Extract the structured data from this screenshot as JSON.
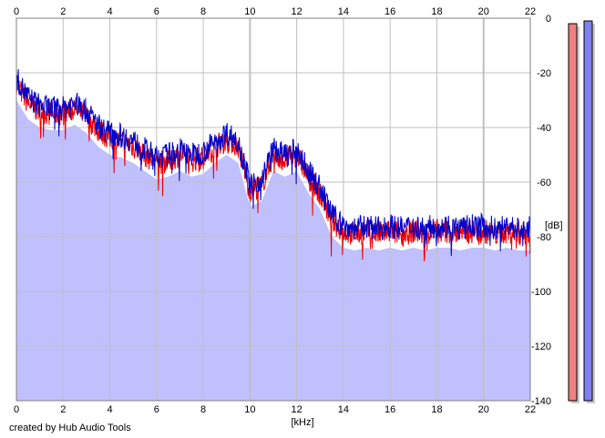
{
  "footer": {
    "credit": "created by Hub Audio Tools"
  },
  "colors": {
    "background": "#ffffff",
    "fill": "#c0c0ff",
    "grid": "#c0c0c0",
    "left_channel": "#ee0000",
    "right_channel": "#0000cc",
    "meter_left": "#f08080",
    "meter_right": "#8080f0"
  },
  "chart_data": {
    "type": "line",
    "title": "",
    "xlabel": "[kHz]",
    "ylabel": "[dB]",
    "xlim": [
      0,
      22
    ],
    "ylim": [
      -140,
      0
    ],
    "xticks": [
      "0",
      "2",
      "4",
      "6",
      "8",
      "10",
      "12",
      "14",
      "16",
      "18",
      "20",
      "22"
    ],
    "yticks": [
      "0",
      "-20",
      "-40",
      "-60",
      "-80",
      "-100",
      "-120",
      "-140"
    ],
    "grid": true,
    "x_axis_labels": "top and bottom",
    "y_axis_labels": "right",
    "series": [
      {
        "color": "#ee0000",
        "x": [
          0,
          0.5,
          1,
          1.5,
          2,
          2.5,
          3,
          3.5,
          4,
          4.5,
          5,
          5.5,
          6,
          6.5,
          7,
          7.5,
          8,
          8.5,
          9,
          9.5,
          10,
          10.5,
          11,
          11.5,
          12,
          12.5,
          13,
          13.5,
          14,
          14.5,
          15,
          15.5,
          16,
          16.5,
          17,
          17.5,
          18,
          18.5,
          19,
          19.5,
          20,
          20.5,
          21,
          21.5,
          22
        ],
        "values": [
          -24,
          -31,
          -34,
          -35,
          -35,
          -33,
          -36,
          -41,
          -44,
          -45,
          -47,
          -50,
          -53,
          -52,
          -50,
          -52,
          -51,
          -47,
          -44,
          -47,
          -63,
          -61,
          -50,
          -52,
          -50,
          -58,
          -64,
          -74,
          -78,
          -79,
          -78,
          -79,
          -78,
          -79,
          -78,
          -79,
          -78,
          -78,
          -79,
          -78,
          -78,
          -79,
          -78,
          -79,
          -79
        ]
      },
      {
        "color": "#0000cc",
        "x": [
          0,
          0.5,
          1,
          1.5,
          2,
          2.5,
          3,
          3.5,
          4,
          4.5,
          5,
          5.5,
          6,
          6.5,
          7,
          7.5,
          8,
          8.5,
          9,
          9.5,
          10,
          10.5,
          11,
          11.5,
          12,
          12.5,
          13,
          13.5,
          14,
          14.5,
          15,
          15.5,
          16,
          16.5,
          17,
          17.5,
          18,
          18.5,
          19,
          19.5,
          20,
          20.5,
          21,
          21.5,
          22
        ],
        "values": [
          -22,
          -29,
          -32,
          -33,
          -33,
          -31,
          -34,
          -39,
          -42,
          -43,
          -45,
          -48,
          -51,
          -50,
          -48,
          -50,
          -49,
          -45,
          -42,
          -45,
          -61,
          -59,
          -48,
          -50,
          -48,
          -56,
          -62,
          -72,
          -76,
          -77,
          -76,
          -77,
          -76,
          -77,
          -76,
          -77,
          -76,
          -76,
          -77,
          -76,
          -76,
          -77,
          -76,
          -77,
          -77
        ]
      }
    ],
    "meters": [
      {
        "color": "#f08080",
        "value": -2
      },
      {
        "color": "#8080f0",
        "value": -1
      }
    ]
  }
}
